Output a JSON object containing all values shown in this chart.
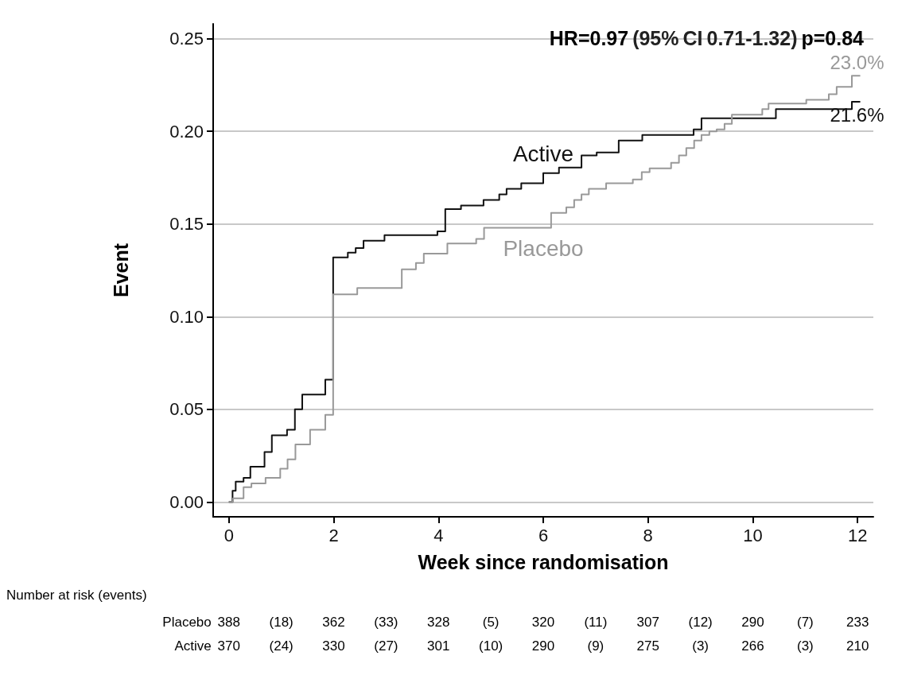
{
  "chart_data": {
    "type": "step",
    "title": "HR=0.97 (95% CI 0.71-1.32) p=0.84",
    "xlabel": "Week since randomisation",
    "ylabel": "Event",
    "xlim": [
      -0.3,
      12.3
    ],
    "xticks": [
      0,
      2,
      4,
      6,
      8,
      10,
      12
    ],
    "ylim": [
      -0.008,
      0.258
    ],
    "yticks": [
      {
        "value": 0,
        "label": "0.00"
      },
      {
        "value": 0.05,
        "label": "0.05"
      },
      {
        "value": 0.1,
        "label": "0.10"
      },
      {
        "value": 0.15,
        "label": "0.15"
      },
      {
        "value": 0.2,
        "label": "0.20"
      },
      {
        "value": 0.25,
        "label": "0.25"
      }
    ],
    "grid": "y",
    "legend": false,
    "marker": "none",
    "line_style": "solid",
    "series": [
      {
        "name": "Active",
        "color": "#111111",
        "x": [
          0,
          0.07,
          0.13,
          0.28,
          0.41,
          0.68,
          0.82,
          1.11,
          1.26,
          1.4,
          1.84,
          1.99,
          2.27,
          2.42,
          2.57,
          2.97,
          3.98,
          4.13,
          4.43,
          4.86,
          5.16,
          5.3,
          5.58,
          6.0,
          6.3,
          6.73,
          7.02,
          7.44,
          7.89,
          8.87,
          9.02,
          10.44,
          11.89,
          12.05
        ],
        "values": [
          0,
          0.006,
          0.011,
          0.013,
          0.019,
          0.027,
          0.036,
          0.039,
          0.05,
          0.058,
          0.066,
          0.132,
          0.1345,
          0.137,
          0.141,
          0.144,
          0.146,
          0.158,
          0.16,
          0.163,
          0.166,
          0.169,
          0.172,
          0.1775,
          0.1805,
          0.187,
          0.1886,
          0.195,
          0.198,
          0.201,
          0.207,
          0.212,
          0.216,
          0.216
        ],
        "value_labels": [
          null,
          null,
          null,
          null,
          null,
          null,
          null,
          null,
          null,
          null,
          null,
          null,
          null,
          null,
          null,
          null,
          null,
          null,
          null,
          null,
          null,
          null,
          null,
          null,
          null,
          null,
          null,
          null,
          null,
          null,
          null,
          null,
          null,
          "21.6%"
        ]
      },
      {
        "name": "Placebo",
        "color": "#999999",
        "x": [
          0,
          0.08,
          0.28,
          0.43,
          0.7,
          0.98,
          1.12,
          1.27,
          1.55,
          1.84,
          1.99,
          2.45,
          3.3,
          3.57,
          3.72,
          4.17,
          4.72,
          4.87,
          6.15,
          6.44,
          6.59,
          6.73,
          6.87,
          7.2,
          7.71,
          7.88,
          8.03,
          8.44,
          8.59,
          8.73,
          8.88,
          9.02,
          9.17,
          9.31,
          9.46,
          9.6,
          10.18,
          10.3,
          11.02,
          11.45,
          11.6,
          11.89,
          12.05
        ],
        "values": [
          0,
          0.002,
          0.008,
          0.01,
          0.013,
          0.018,
          0.023,
          0.031,
          0.039,
          0.047,
          0.112,
          0.1155,
          0.1255,
          0.129,
          0.134,
          0.1395,
          0.142,
          0.148,
          0.156,
          0.159,
          0.163,
          0.166,
          0.169,
          0.172,
          0.174,
          0.178,
          0.18,
          0.183,
          0.187,
          0.191,
          0.195,
          0.198,
          0.2,
          0.201,
          0.204,
          0.209,
          0.212,
          0.215,
          0.217,
          0.22,
          0.224,
          0.23,
          0.23
        ],
        "value_labels": [
          null,
          null,
          null,
          null,
          null,
          null,
          null,
          null,
          null,
          null,
          null,
          null,
          null,
          null,
          null,
          null,
          null,
          null,
          null,
          null,
          null,
          null,
          null,
          null,
          null,
          null,
          null,
          null,
          null,
          null,
          null,
          null,
          null,
          null,
          null,
          null,
          null,
          null,
          null,
          null,
          null,
          null,
          "23.0%"
        ]
      }
    ],
    "annotations": [
      "Number at risk (events)",
      "Placebo 388 (18) 362 (33) 328 (5) 320 (11) 307 (12) 290 (7) 233",
      "Active 370 (24) 330 (27) 301 (10) 290 (9) 275 (3) 266 (3) 210"
    ]
  }
}
